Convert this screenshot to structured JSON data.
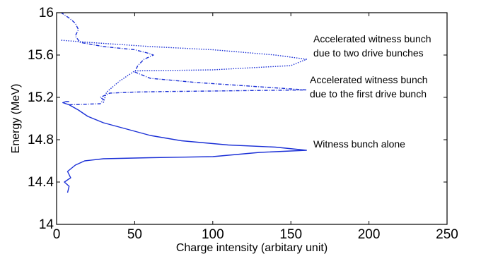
{
  "chart_data": {
    "type": "line",
    "title": "",
    "xlabel": "Charge intensity (arbitary unit)",
    "ylabel": "Energy (MeV)",
    "xlim": [
      0,
      250
    ],
    "ylim": [
      14,
      16
    ],
    "xticks": [
      0,
      50,
      100,
      150,
      200,
      250
    ],
    "yticks": [
      14,
      14.4,
      14.8,
      15.2,
      15.6,
      16
    ],
    "ytick_labels": [
      "14",
      "14.4",
      "14.8",
      "15.2",
      "15.6",
      "16"
    ],
    "grid": false,
    "series_color": "#1a2fd6",
    "series": [
      {
        "style": "solid",
        "x": [
          7,
          8,
          5,
          9,
          7,
          12,
          18,
          30,
          60,
          100,
          130,
          160,
          140,
          110,
          80,
          60,
          45,
          30,
          20,
          14,
          8,
          4,
          6,
          8
        ],
        "y": [
          14.3,
          14.36,
          14.4,
          14.44,
          14.5,
          14.56,
          14.6,
          14.62,
          14.63,
          14.64,
          14.68,
          14.7,
          14.73,
          14.75,
          14.79,
          14.84,
          14.9,
          14.96,
          15.02,
          15.08,
          15.13,
          15.15,
          15.16,
          15.16
        ]
      },
      {
        "style": "dash-dot",
        "x": [
          8,
          28,
          30,
          28,
          34,
          50,
          70,
          100,
          130,
          160,
          130,
          90,
          60,
          50,
          52,
          56,
          62,
          58,
          50,
          30,
          15,
          12,
          14,
          12,
          8,
          3
        ],
        "y": [
          15.13,
          15.14,
          15.18,
          15.2,
          15.24,
          15.25,
          15.255,
          15.26,
          15.265,
          15.27,
          15.3,
          15.34,
          15.38,
          15.44,
          15.5,
          15.56,
          15.6,
          15.62,
          15.65,
          15.68,
          15.72,
          15.78,
          15.84,
          15.9,
          15.95,
          16
        ]
      },
      {
        "style": "dotted",
        "x": [
          30,
          32,
          40,
          50,
          100,
          150,
          160,
          140,
          100,
          60,
          40,
          20,
          3
        ],
        "y": [
          15.15,
          15.25,
          15.35,
          15.45,
          15.46,
          15.5,
          15.56,
          15.6,
          15.65,
          15.68,
          15.7,
          15.72,
          15.74
        ]
      }
    ],
    "annotations": [
      {
        "lines": [
          "Accelerated witness bunch",
          "due to two drive bunches"
        ]
      },
      {
        "lines": [
          "Accelerated witness bunch",
          "due to the first drive bunch"
        ]
      },
      {
        "lines": [
          "Witness bunch alone"
        ]
      }
    ]
  }
}
